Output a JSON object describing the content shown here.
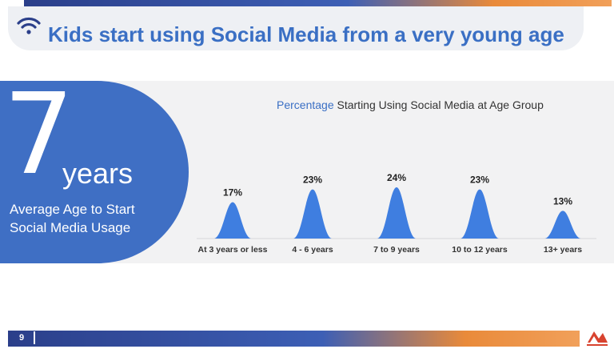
{
  "slide": {
    "title": "Kids start using Social Media from a very young age",
    "page_number": "9"
  },
  "highlight": {
    "number": "7",
    "unit": "years",
    "caption_line1": "Average Age to Start",
    "caption_line2": "Social Media Usage"
  },
  "chart_title": {
    "accent": "Percentage",
    "rest": " Starting Using Social Media at Age Group"
  },
  "colors": {
    "accent": "#3a6fc4",
    "peak": "#3f7ee0",
    "panel": "#3f6fc4"
  },
  "icons": {
    "wifi": "wifi-icon",
    "logo": "brand-logo"
  },
  "chart_data": {
    "type": "bar",
    "title": "Percentage Starting Using Social Media at Age Group",
    "categories": [
      "At 3 years or less",
      "4 - 6 years",
      "7 to 9 years",
      "10 to 12 years",
      "13+ years"
    ],
    "values": [
      17,
      23,
      24,
      23,
      13
    ],
    "value_labels": [
      "17%",
      "23%",
      "24%",
      "23%",
      "13%"
    ],
    "xlabel": "",
    "ylabel": "",
    "ylim": [
      0,
      30
    ],
    "grid": false,
    "legend": "none"
  }
}
